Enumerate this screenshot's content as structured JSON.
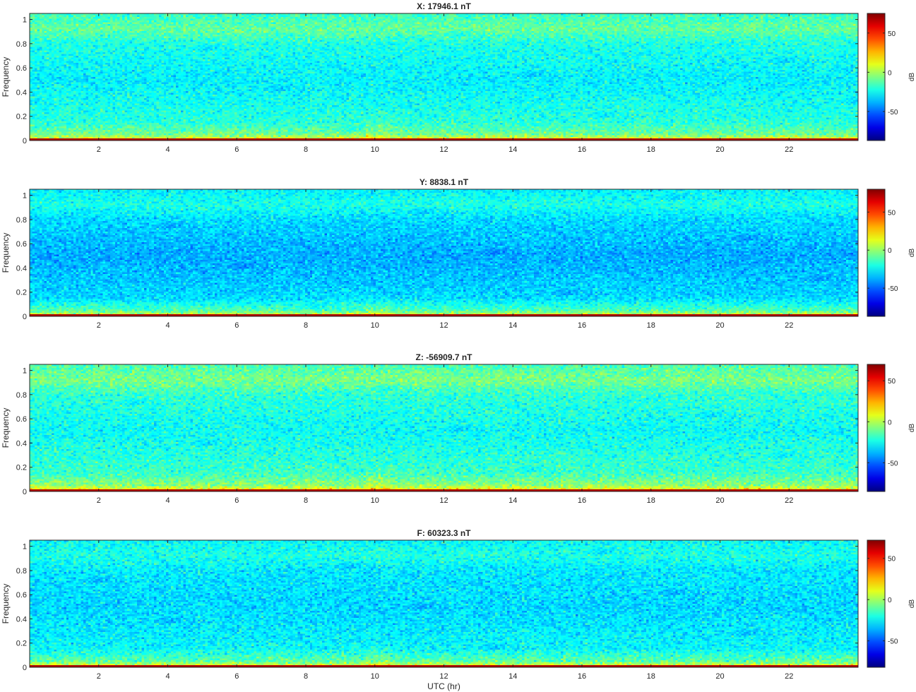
{
  "figure": {
    "xlabel": "UTC (hr)"
  },
  "chart_data": [
    {
      "type": "heatmap",
      "title": "X: 17946.1 nT",
      "xlabel": "",
      "ylabel": "Frequency",
      "colorbar_label": "dB",
      "colormap": "jet",
      "xlim": [
        0,
        24
      ],
      "ylim": [
        0,
        1.05
      ],
      "clim": [
        -87,
        75
      ],
      "xticks": [
        2,
        4,
        6,
        8,
        10,
        12,
        14,
        16,
        18,
        20,
        22
      ],
      "yticks": [
        0,
        0.2,
        0.4,
        0.6,
        0.8,
        1
      ],
      "colorbar_ticks": [
        -50,
        0,
        50
      ],
      "band_profile_db": {
        "0": 75,
        "0.02": 8,
        "0.05": -8,
        "0.15": -20,
        "0.5": -28,
        "0.8": -22,
        "0.92": -10,
        "1.05": -18
      },
      "feature": {
        "x_hr": 10.1,
        "note": "brighter low-frequency patch near 10 UTC"
      }
    },
    {
      "type": "heatmap",
      "title": "Y: 8838.1 nT",
      "xlabel": "",
      "ylabel": "Frequency",
      "colorbar_label": "dB",
      "colormap": "jet",
      "xlim": [
        0,
        24
      ],
      "ylim": [
        0,
        1.05
      ],
      "clim": [
        -87,
        80
      ],
      "xticks": [
        2,
        4,
        6,
        8,
        10,
        12,
        14,
        16,
        18,
        20,
        22
      ],
      "yticks": [
        0,
        0.2,
        0.4,
        0.6,
        0.8,
        1
      ],
      "colorbar_ticks": [
        -50,
        0,
        50
      ],
      "band_profile_db": {
        "0": 80,
        "0.02": 5,
        "0.05": -12,
        "0.15": -30,
        "0.5": -38,
        "0.8": -30,
        "0.92": -20,
        "1.05": -26
      },
      "feature": {
        "x_hr": 10.1,
        "note": "brighter low-frequency patch near 10 UTC"
      }
    },
    {
      "type": "heatmap",
      "title": "Z: -56909.7 nT",
      "xlabel": "",
      "ylabel": "Frequency",
      "colorbar_label": "dB",
      "colormap": "jet",
      "xlim": [
        0,
        24
      ],
      "ylim": [
        0,
        1.05
      ],
      "clim": [
        -85,
        70
      ],
      "xticks": [
        2,
        4,
        6,
        8,
        10,
        12,
        14,
        16,
        18,
        20,
        22
      ],
      "yticks": [
        0,
        0.2,
        0.4,
        0.6,
        0.8,
        1
      ],
      "colorbar_ticks": [
        -50,
        0,
        50
      ],
      "band_profile_db": {
        "0": 70,
        "0.02": 10,
        "0.05": -5,
        "0.15": -18,
        "0.5": -26,
        "0.8": -20,
        "0.92": -8,
        "1.05": -16
      },
      "feature": {
        "x_hr": 10.1,
        "note": "brighter low-frequency patch near 10 UTC"
      }
    },
    {
      "type": "heatmap",
      "title": "F: 60323.3 nT",
      "xlabel": "UTC (hr)",
      "ylabel": "Frequency",
      "colorbar_label": "dB",
      "colormap": "jet",
      "xlim": [
        0,
        24
      ],
      "ylim": [
        0,
        1.05
      ],
      "clim": [
        -82,
        72
      ],
      "xticks": [
        2,
        4,
        6,
        8,
        10,
        12,
        14,
        16,
        18,
        20,
        22
      ],
      "yticks": [
        0,
        0.2,
        0.4,
        0.6,
        0.8,
        1
      ],
      "colorbar_ticks": [
        -50,
        0,
        50
      ],
      "band_profile_db": {
        "0": 72,
        "0.02": 6,
        "0.05": -10,
        "0.15": -24,
        "0.5": -30,
        "0.8": -27,
        "0.92": -20,
        "1.05": -24
      },
      "feature": {
        "x_hr": 10.1,
        "note": "brighter low-frequency patch near 10 UTC"
      }
    }
  ]
}
